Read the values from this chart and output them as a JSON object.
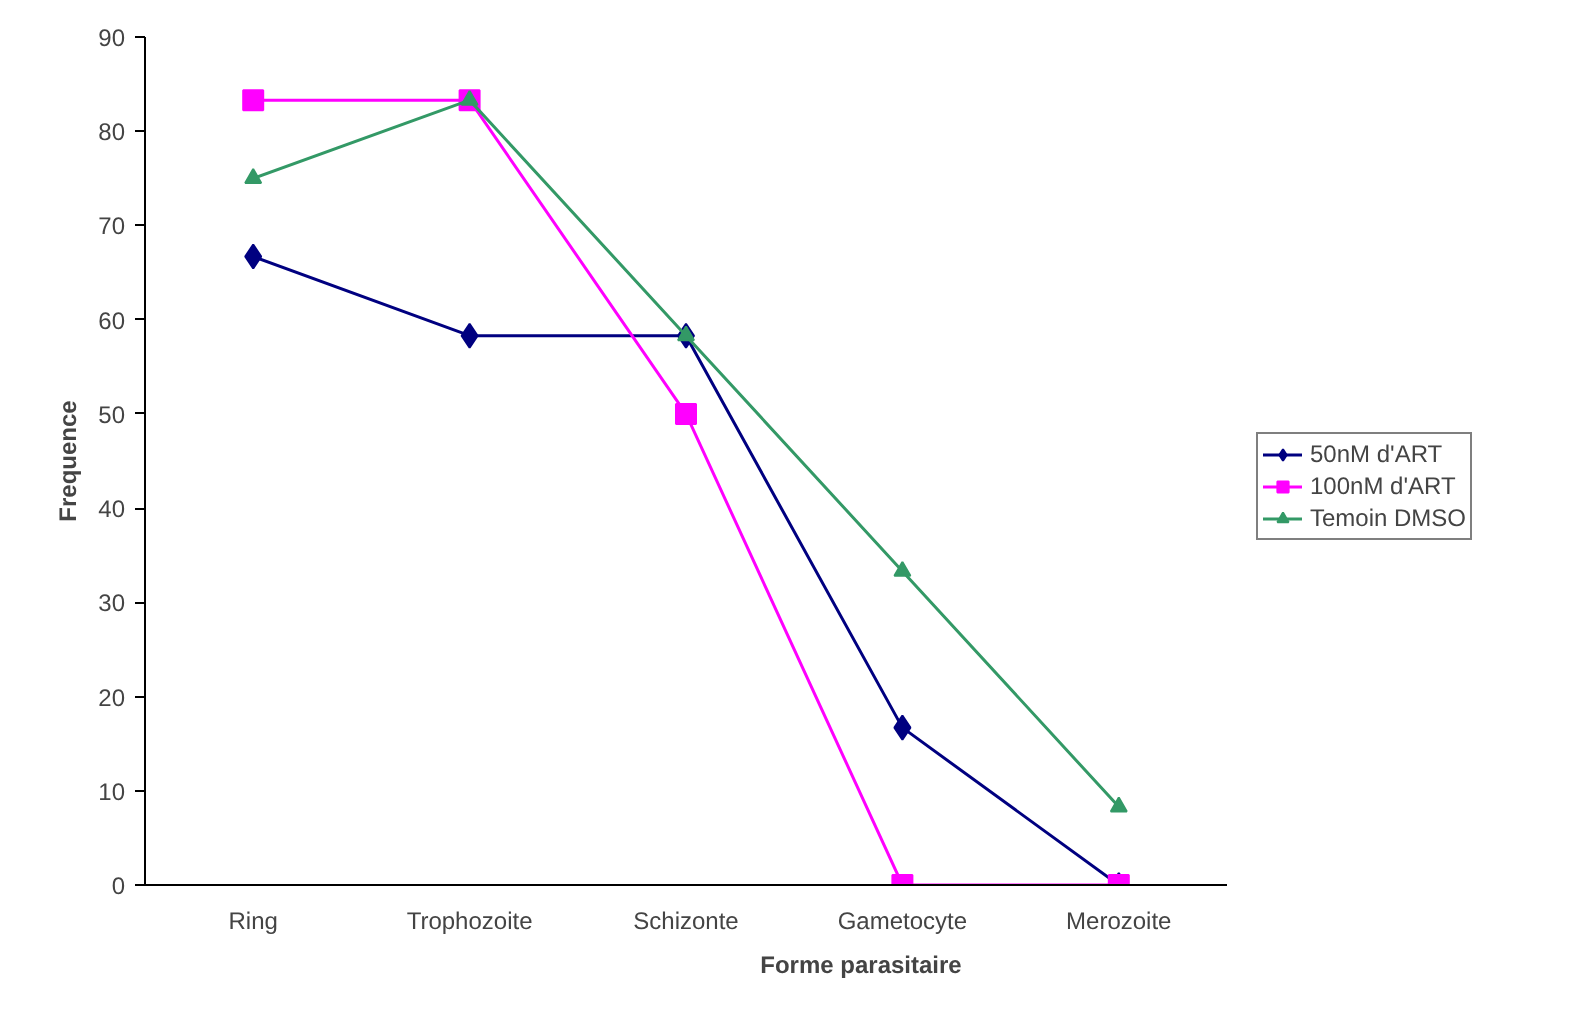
{
  "chart_data": {
    "type": "line",
    "xlabel": "Forme parasitaire",
    "ylabel": "Frequence",
    "categories": [
      "Ring",
      "Trophozoite",
      "Schizonte",
      "Gametocyte",
      "Merozoite"
    ],
    "series": [
      {
        "name": "50nM d'ART",
        "color": "#000080",
        "marker": "diamond",
        "values": [
          66.7,
          58.3,
          58.3,
          16.7,
          0
        ]
      },
      {
        "name": "100nM d'ART",
        "color": "#ff00ff",
        "marker": "square",
        "values": [
          83.3,
          83.3,
          50,
          0,
          0
        ]
      },
      {
        "name": "Temoin DMSO",
        "color": "#339966",
        "marker": "triangle",
        "values": [
          75,
          83.3,
          58.3,
          33.3,
          8.3
        ]
      }
    ],
    "ylim": [
      0,
      90
    ],
    "yticks": [
      0,
      10,
      20,
      30,
      40,
      50,
      60,
      70,
      80,
      90
    ],
    "grid": false,
    "legend": "right"
  }
}
